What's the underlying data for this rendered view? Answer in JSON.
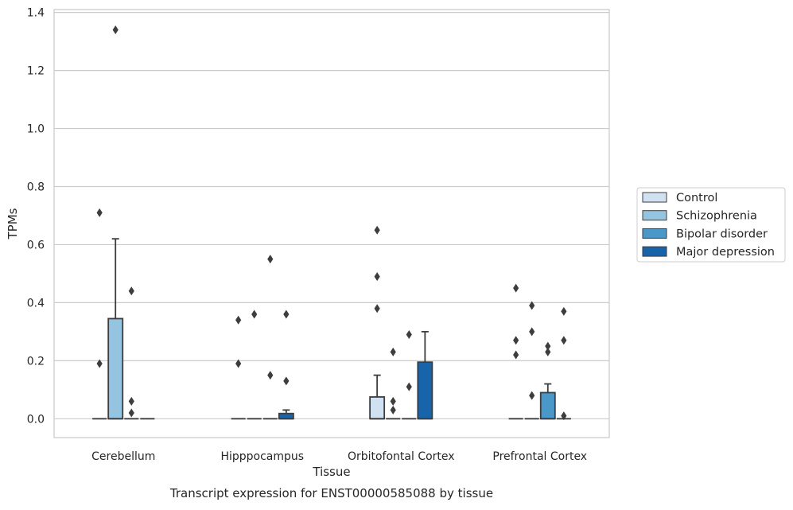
{
  "chart_data": {
    "type": "boxplot",
    "caption": "Transcript expression for ENST00000585088 by tissue",
    "xlabel": "Tissue",
    "ylabel": "TPMs",
    "ylim": [
      -0.065,
      1.41
    ],
    "yticks": [
      0.0,
      0.2,
      0.4,
      0.6,
      0.8,
      1.0,
      1.2,
      1.4
    ],
    "ytick_labels": [
      "0.0",
      "0.2",
      "0.4",
      "0.6",
      "0.8",
      "1.0",
      "1.2",
      "1.4"
    ],
    "grid": true,
    "legend_position": "right",
    "categories": [
      "Cerebellum",
      "Hipppocampus",
      "Orbitofontal Cortex",
      "Prefrontal Cortex"
    ],
    "series": [
      {
        "name": "Control",
        "color": "#d0e1f2",
        "boxes": [
          {
            "q1": 0,
            "median": 0,
            "q3": 0,
            "whisker_low": 0,
            "whisker_high": 0,
            "outliers": [
              0.71,
              0.19
            ]
          },
          {
            "q1": 0,
            "median": 0,
            "q3": 0,
            "whisker_low": 0,
            "whisker_high": 0,
            "outliers": [
              0.34,
              0.19
            ]
          },
          {
            "q1": 0,
            "median": 0,
            "q3": 0.075,
            "whisker_low": 0,
            "whisker_high": 0.15,
            "outliers": [
              0.65,
              0.49,
              0.38
            ]
          },
          {
            "q1": 0,
            "median": 0,
            "q3": 0,
            "whisker_low": 0,
            "whisker_high": 0,
            "outliers": [
              0.45,
              0.27,
              0.22
            ]
          }
        ]
      },
      {
        "name": "Schizophrenia",
        "color": "#94c4df",
        "boxes": [
          {
            "q1": 0,
            "median": 0,
            "q3": 0.345,
            "whisker_low": 0,
            "whisker_high": 0.62,
            "outliers": [
              1.34
            ]
          },
          {
            "q1": 0,
            "median": 0,
            "q3": 0,
            "whisker_low": 0,
            "whisker_high": 0,
            "outliers": [
              0.36
            ]
          },
          {
            "q1": 0,
            "median": 0,
            "q3": 0,
            "whisker_low": 0,
            "whisker_high": 0,
            "outliers": [
              0.23,
              0.06,
              0.03
            ]
          },
          {
            "q1": 0,
            "median": 0,
            "q3": 0,
            "whisker_low": 0,
            "whisker_high": 0,
            "outliers": [
              0.39,
              0.3,
              0.08
            ]
          }
        ]
      },
      {
        "name": "Bipolar disorder",
        "color": "#4a98c9",
        "boxes": [
          {
            "q1": 0,
            "median": 0,
            "q3": 0,
            "whisker_low": 0,
            "whisker_high": 0,
            "outliers": [
              0.44,
              0.06,
              0.02
            ]
          },
          {
            "q1": 0,
            "median": 0,
            "q3": 0,
            "whisker_low": 0,
            "whisker_high": 0,
            "outliers": [
              0.55,
              0.15
            ]
          },
          {
            "q1": 0,
            "median": 0,
            "q3": 0,
            "whisker_low": 0,
            "whisker_high": 0,
            "outliers": [
              0.29,
              0.11
            ]
          },
          {
            "q1": 0,
            "median": 0,
            "q3": 0.09,
            "whisker_low": 0,
            "whisker_high": 0.12,
            "outliers": [
              0.25,
              0.23
            ]
          }
        ]
      },
      {
        "name": "Major depression",
        "color": "#1764ab",
        "boxes": [
          {
            "q1": 0,
            "median": 0,
            "q3": 0,
            "whisker_low": 0,
            "whisker_high": 0,
            "outliers": []
          },
          {
            "q1": 0,
            "median": 0,
            "q3": 0.018,
            "whisker_low": 0,
            "whisker_high": 0.03,
            "outliers": [
              0.36,
              0.13
            ]
          },
          {
            "q1": 0,
            "median": 0,
            "q3": 0.195,
            "whisker_low": 0,
            "whisker_high": 0.3,
            "outliers": []
          },
          {
            "q1": 0,
            "median": 0,
            "q3": 0,
            "whisker_low": 0,
            "whisker_high": 0,
            "outliers": [
              0.37,
              0.27,
              0.01
            ]
          }
        ]
      }
    ]
  }
}
